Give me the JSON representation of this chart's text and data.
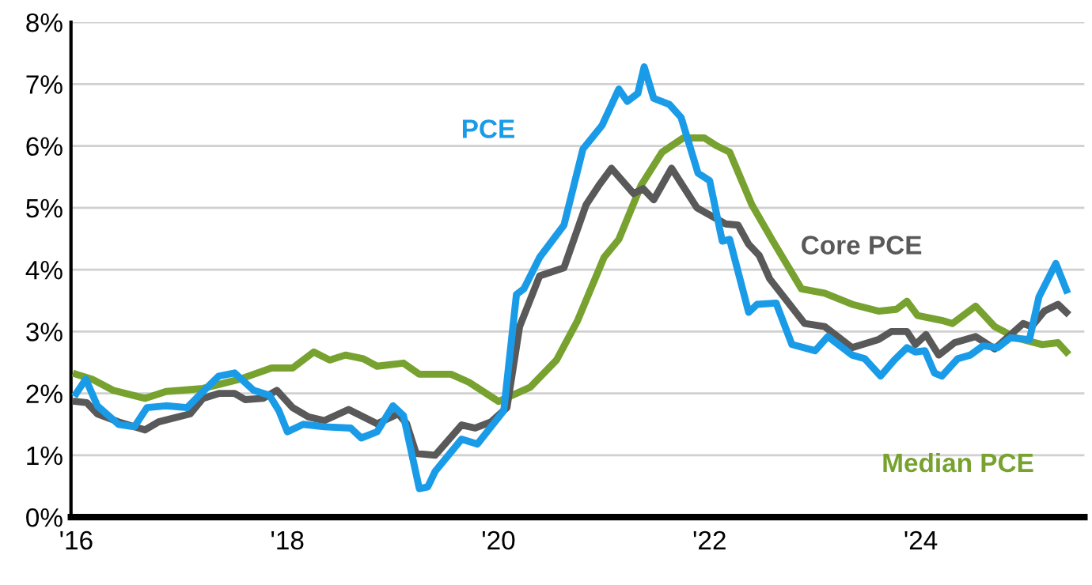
{
  "chart_data": {
    "type": "line",
    "xlim": [
      2015.95,
      2025.55
    ],
    "ylim": [
      0,
      8
    ],
    "xticks": [
      {
        "value": 2016,
        "label": "'16"
      },
      {
        "value": 2018,
        "label": "'18"
      },
      {
        "value": 2020,
        "label": "'20"
      },
      {
        "value": 2022,
        "label": "'22"
      },
      {
        "value": 2024,
        "label": "'24"
      }
    ],
    "yticks": [
      {
        "value": 0,
        "label": "0%"
      },
      {
        "value": 1,
        "label": "1%"
      },
      {
        "value": 2,
        "label": "2%"
      },
      {
        "value": 3,
        "label": "3%"
      },
      {
        "value": 4,
        "label": "4%"
      },
      {
        "value": 5,
        "label": "5%"
      },
      {
        "value": 6,
        "label": "6%"
      },
      {
        "value": 7,
        "label": "7%"
      },
      {
        "value": 8,
        "label": "8%"
      }
    ],
    "grid": "y",
    "legend": false,
    "marker": "none",
    "line_style": "solid",
    "series": [
      {
        "name": "PCE",
        "color": "#1a9be8",
        "x": [
          2016.0,
          2016.09,
          2016.2,
          2016.4,
          2016.55,
          2016.67,
          2016.85,
          2017.05,
          2017.2,
          2017.35,
          2017.5,
          2017.68,
          2017.83,
          2017.92,
          2018.0,
          2018.15,
          2018.35,
          2018.6,
          2018.7,
          2018.85,
          2019.0,
          2019.1,
          2019.25,
          2019.33,
          2019.4,
          2019.65,
          2019.8,
          2020.05,
          2020.17,
          2020.24,
          2020.39,
          2020.62,
          2020.8,
          2020.98,
          2021.14,
          2021.22,
          2021.32,
          2021.38,
          2021.47,
          2021.62,
          2021.73,
          2021.89,
          2022.0,
          2022.12,
          2022.19,
          2022.37,
          2022.45,
          2022.63,
          2022.78,
          2023.0,
          2023.12,
          2023.35,
          2023.47,
          2023.62,
          2023.75,
          2023.87,
          2023.95,
          2024.04,
          2024.13,
          2024.2,
          2024.35,
          2024.47,
          2024.59,
          2024.73,
          2024.85,
          2025.03,
          2025.12,
          2025.28,
          2025.38
        ],
        "values": [
          2.0,
          2.23,
          1.8,
          1.5,
          1.46,
          1.77,
          1.8,
          1.77,
          2.03,
          2.28,
          2.33,
          2.05,
          1.97,
          1.72,
          1.38,
          1.5,
          1.46,
          1.44,
          1.28,
          1.38,
          1.8,
          1.64,
          0.46,
          0.49,
          0.74,
          1.26,
          1.18,
          1.72,
          3.6,
          3.69,
          4.2,
          4.72,
          5.95,
          6.33,
          6.92,
          6.72,
          6.85,
          7.28,
          6.77,
          6.67,
          6.46,
          5.56,
          5.44,
          4.46,
          4.49,
          3.31,
          3.44,
          3.46,
          2.79,
          2.69,
          2.92,
          2.62,
          2.56,
          2.28,
          2.54,
          2.74,
          2.67,
          2.69,
          2.33,
          2.28,
          2.56,
          2.62,
          2.77,
          2.74,
          2.9,
          2.87,
          3.56,
          4.1,
          3.67
        ]
      },
      {
        "name": "Core PCE",
        "color": "#595959",
        "x": [
          2016.0,
          2016.1,
          2016.2,
          2016.4,
          2016.65,
          2016.78,
          2017.08,
          2017.2,
          2017.35,
          2017.5,
          2017.6,
          2017.77,
          2017.9,
          2018.05,
          2018.2,
          2018.35,
          2018.58,
          2018.85,
          2019.05,
          2019.13,
          2019.22,
          2019.4,
          2019.65,
          2019.78,
          2019.93,
          2020.08,
          2020.2,
          2020.39,
          2020.62,
          2020.83,
          2020.95,
          2021.07,
          2021.28,
          2021.37,
          2021.47,
          2021.64,
          2021.88,
          2022.15,
          2022.27,
          2022.37,
          2022.47,
          2022.57,
          2022.9,
          2023.09,
          2023.35,
          2023.6,
          2023.72,
          2023.87,
          2023.95,
          2024.05,
          2024.17,
          2024.32,
          2024.52,
          2024.7,
          2024.97,
          2025.05,
          2025.17,
          2025.3,
          2025.38
        ],
        "values": [
          1.87,
          1.85,
          1.67,
          1.54,
          1.41,
          1.54,
          1.67,
          1.92,
          2.0,
          2.0,
          1.9,
          1.92,
          2.05,
          1.77,
          1.62,
          1.56,
          1.74,
          1.51,
          1.67,
          1.51,
          1.03,
          1.0,
          1.49,
          1.44,
          1.54,
          1.77,
          3.08,
          3.9,
          4.03,
          5.05,
          5.36,
          5.64,
          5.23,
          5.31,
          5.13,
          5.64,
          5.0,
          4.74,
          4.72,
          4.41,
          4.23,
          3.85,
          3.13,
          3.08,
          2.74,
          2.87,
          3.0,
          3.0,
          2.79,
          2.95,
          2.62,
          2.82,
          2.92,
          2.72,
          3.13,
          3.08,
          3.33,
          3.44,
          3.31
        ]
      },
      {
        "name": "Median PCE",
        "color": "#77a22f",
        "x": [
          2016.0,
          2016.15,
          2016.35,
          2016.65,
          2016.85,
          2017.2,
          2017.55,
          2017.85,
          2018.05,
          2018.25,
          2018.4,
          2018.55,
          2018.72,
          2018.85,
          2019.1,
          2019.25,
          2019.55,
          2019.72,
          2020.0,
          2020.3,
          2020.55,
          2020.75,
          2021.0,
          2021.14,
          2021.35,
          2021.55,
          2021.75,
          2021.95,
          2022.07,
          2022.19,
          2022.4,
          2022.6,
          2022.87,
          2023.09,
          2023.35,
          2023.6,
          2023.77,
          2023.87,
          2023.97,
          2024.2,
          2024.3,
          2024.52,
          2024.7,
          2024.9,
          2025.15,
          2025.3,
          2025.38
        ],
        "values": [
          2.31,
          2.23,
          2.05,
          1.92,
          2.03,
          2.08,
          2.23,
          2.41,
          2.41,
          2.67,
          2.54,
          2.62,
          2.56,
          2.44,
          2.49,
          2.31,
          2.31,
          2.18,
          1.87,
          2.1,
          2.54,
          3.18,
          4.2,
          4.49,
          5.36,
          5.9,
          6.13,
          6.13,
          6.0,
          5.9,
          5.05,
          4.46,
          3.69,
          3.62,
          3.44,
          3.33,
          3.36,
          3.49,
          3.26,
          3.18,
          3.13,
          3.41,
          3.08,
          2.9,
          2.79,
          2.82,
          2.67
        ]
      }
    ]
  }
}
